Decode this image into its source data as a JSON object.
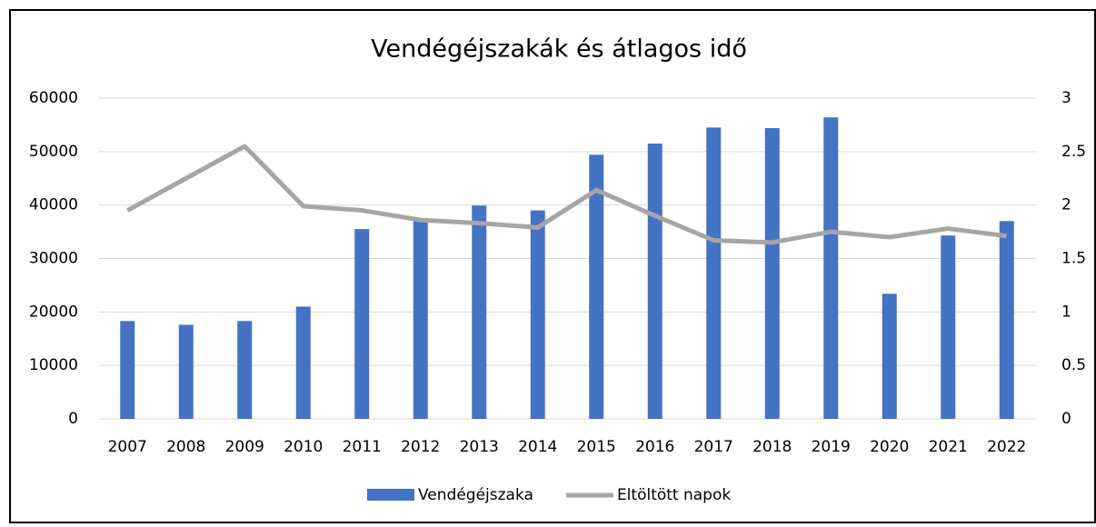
{
  "chart_data": {
    "type": "bar-line",
    "title": "Vendégéjszakák és átlagos idő",
    "categories": [
      "2007",
      "2008",
      "2009",
      "2010",
      "2011",
      "2012",
      "2013",
      "2014",
      "2015",
      "2016",
      "2017",
      "2018",
      "2019",
      "2020",
      "2021",
      "2022"
    ],
    "series": [
      {
        "name": "Vendégéjszaka",
        "type": "bar",
        "color": "#4472c4",
        "axis": "y",
        "values": [
          18300,
          17600,
          18300,
          21000,
          35500,
          37500,
          39900,
          39000,
          49400,
          51500,
          54500,
          54400,
          56400,
          23400,
          34300,
          37000
        ]
      },
      {
        "name": "Eltöltött napok",
        "type": "line",
        "color": "#a5a5a5",
        "axis": "y2",
        "values": [
          1.95,
          2.25,
          2.55,
          1.99,
          1.95,
          1.86,
          1.83,
          1.79,
          2.14,
          1.9,
          1.67,
          1.65,
          1.75,
          1.7,
          1.78,
          1.71
        ]
      }
    ],
    "ylim": [
      0,
      60000
    ],
    "yticks": [
      0,
      10000,
      20000,
      30000,
      40000,
      50000,
      60000
    ],
    "y2lim": [
      0,
      3
    ],
    "y2ticks": [
      0,
      0.5,
      1,
      1.5,
      2,
      2.5,
      3
    ],
    "grid": true,
    "legend": "bottom"
  }
}
